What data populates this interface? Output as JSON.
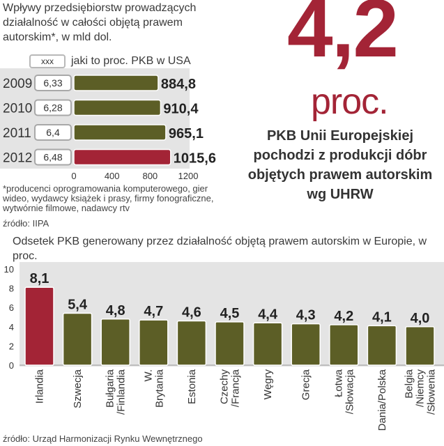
{
  "chart_data": [
    {
      "type": "bar",
      "orientation": "horizontal",
      "title": "Wpływy przedsiębiorstw prowadzących działalność w całości objętą prawem autorskim*, w mld dol.",
      "legend_box_label": "xxx",
      "legend_text": "jaki to proc. PKB w USA",
      "categories": [
        "2009",
        "2010",
        "2011",
        "2012"
      ],
      "values": [
        884.8,
        910.4,
        965.1,
        1015.6
      ],
      "value_labels": [
        "884,8",
        "910,4",
        "965,1",
        "1015,6"
      ],
      "pct_gdp_labels": [
        "6,33",
        "6,28",
        "6,4",
        "6,48"
      ],
      "xlim": [
        0,
        1200
      ],
      "xticks": [
        0,
        400,
        800,
        1200
      ],
      "xtick_labels": [
        "0",
        "400",
        "800",
        "1200"
      ],
      "highlight_index": 3,
      "footnote": "*producenci oprogramowania komputerowego, gier wideo, wydawcy książek i prasy, firmy fonograficzne, wytwórnie filmowe, nadawcy rtv",
      "source": "źródło: IIPA"
    },
    {
      "type": "bar",
      "orientation": "vertical",
      "title": "Odsetek PKB generowany przez działalność objętą prawem autorskim w Europie, w proc.",
      "categories": [
        "Irlandia",
        "Szwecja",
        "Bułgaria /Finlandia",
        "W. Brytania",
        "Estonia",
        "Czechy /Francja",
        "Węgry",
        "Grecja",
        "Łotwa /Słowacja",
        "Dania/Polska",
        "Belgia /Niemcy /Słowenia"
      ],
      "values": [
        8.1,
        5.4,
        4.8,
        4.7,
        4.6,
        4.5,
        4.4,
        4.3,
        4.2,
        4.1,
        4.0
      ],
      "value_labels": [
        "8,1",
        "5,4",
        "4,8",
        "4,7",
        "4,6",
        "4,5",
        "4,4",
        "4,3",
        "4,2",
        "4,1",
        "4,0"
      ],
      "ylim": [
        0,
        10
      ],
      "yticks": [
        0,
        2,
        4,
        6,
        8,
        10
      ],
      "highlight_index": 0,
      "source": "źródło: Urząd Harmonizacji Rynku Wewnętrznego"
    }
  ],
  "headline": {
    "number": "4,2",
    "unit": "proc.",
    "description": "PKB Unii Europejskiej pochodzi z produkcji dóbr objętych prawem autorskim wg UHRW"
  },
  "colors": {
    "bar": "#5c5e26",
    "bar_highlight": "#a32436",
    "panel": "#e4e4e4",
    "accent": "#a32436"
  }
}
